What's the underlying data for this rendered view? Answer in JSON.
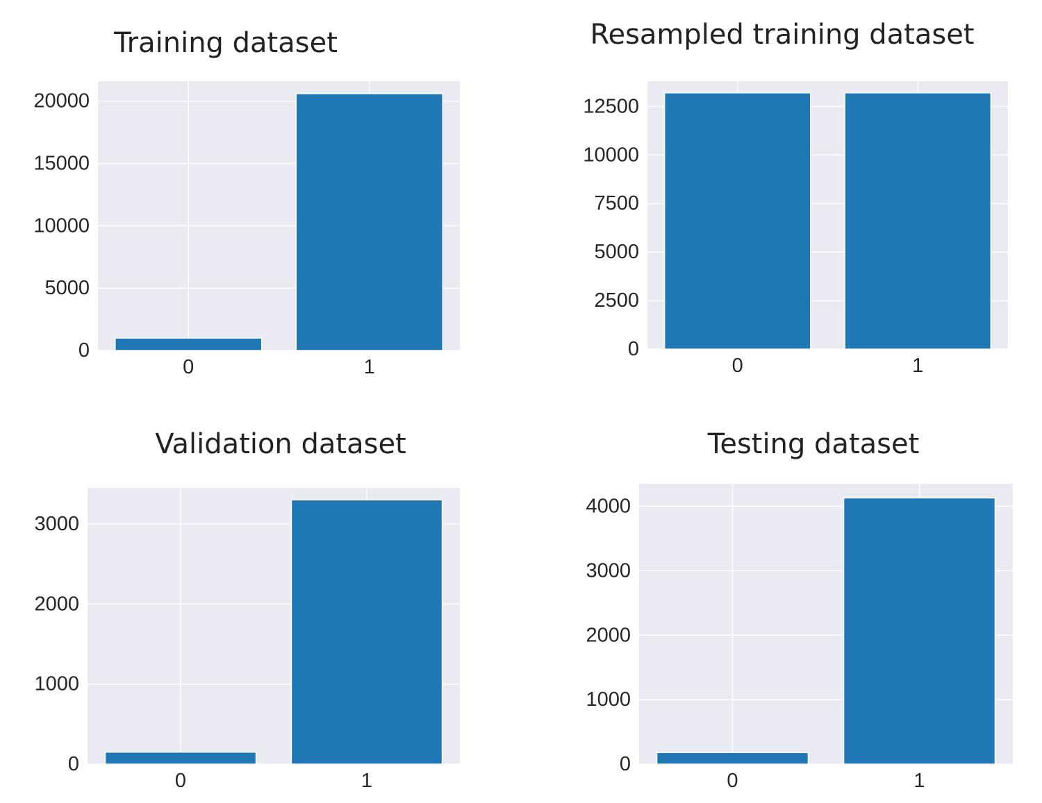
{
  "chart_data": [
    {
      "type": "bar",
      "title": "Training dataset",
      "xlabel": "",
      "ylabel": "",
      "categories": [
        "0",
        "1"
      ],
      "values": [
        1000,
        20600
      ],
      "ylim": [
        0,
        21600
      ],
      "yticks": [
        0,
        5000,
        10000,
        15000,
        20000
      ],
      "grid": true,
      "legend": "none",
      "bar_color": "#1f77b4"
    },
    {
      "type": "bar",
      "title": "Resampled training dataset",
      "xlabel": "",
      "ylabel": "",
      "categories": [
        "0",
        "1"
      ],
      "values": [
        13200,
        13200
      ],
      "ylim": [
        0,
        13800
      ],
      "yticks": [
        0,
        2500,
        5000,
        7500,
        10000,
        12500
      ],
      "grid": true,
      "legend": "none",
      "bar_color": "#1f77b4"
    },
    {
      "type": "bar",
      "title": "Validation dataset",
      "xlabel": "",
      "ylabel": "",
      "categories": [
        "0",
        "1"
      ],
      "values": [
        150,
        3300
      ],
      "ylim": [
        0,
        3450
      ],
      "yticks": [
        0,
        1000,
        2000,
        3000
      ],
      "grid": true,
      "legend": "none",
      "bar_color": "#1f77b4"
    },
    {
      "type": "bar",
      "title": "Testing dataset",
      "xlabel": "",
      "ylabel": "",
      "categories": [
        "0",
        "1"
      ],
      "values": [
        180,
        4130
      ],
      "ylim": [
        0,
        4350
      ],
      "yticks": [
        0,
        1000,
        2000,
        3000,
        4000
      ],
      "grid": true,
      "legend": "none",
      "bar_color": "#1f77b4"
    }
  ]
}
